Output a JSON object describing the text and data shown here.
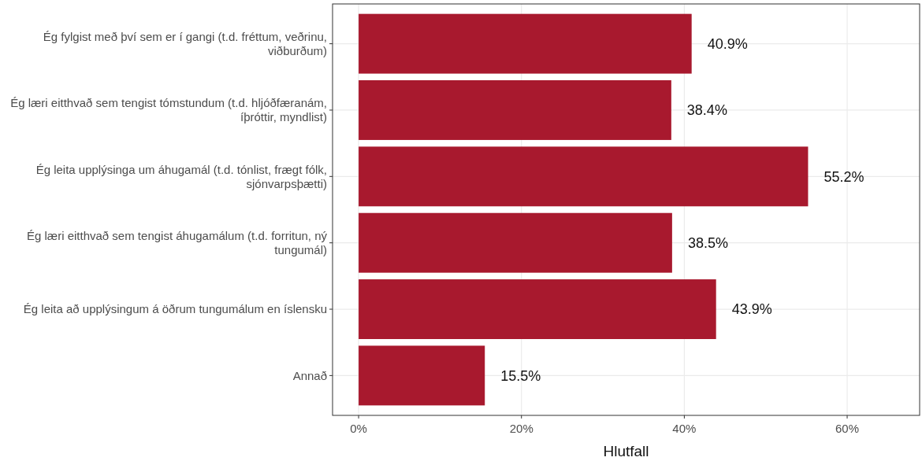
{
  "chart_data": {
    "type": "bar",
    "orientation": "horizontal",
    "xlabel": "Hlutfall",
    "categories": [
      "Ég fylgist með því sem er í gangi (t.d. fréttum, veðrinu, viðburðum)",
      "Ég læri eitthvað sem tengist tómstundum (t.d. hljóðfæranám, íþróttir, myndlist)",
      "Ég leita upplýsinga um áhugamál (t.d. tónlist, frægt fólk, sjónvarpsþætti)",
      "Ég læri eitthvað sem tengist áhugamálum (t.d. forritun, ný tungumál)",
      "Ég leita að upplýsingum á öðrum tungumálum en íslensku",
      "Annað"
    ],
    "values": [
      40.9,
      38.4,
      55.2,
      38.5,
      43.9,
      15.5
    ],
    "value_labels": [
      "40.9%",
      "38.4%",
      "55.2%",
      "38.5%",
      "43.9%",
      "15.5%"
    ],
    "color": "#a8192e",
    "xlim": [
      -3.2,
      68.9
    ],
    "xticks": [
      {
        "value": 0,
        "label": "0%"
      },
      {
        "value": 20,
        "label": "20%"
      },
      {
        "value": 40,
        "label": "40%"
      },
      {
        "value": 60,
        "label": "60%"
      }
    ],
    "grid": true
  }
}
